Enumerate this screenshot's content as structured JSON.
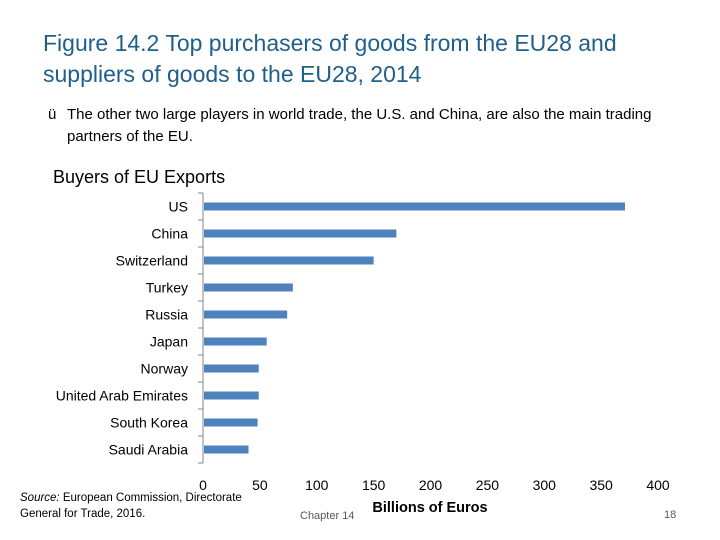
{
  "slide": {
    "title": "Figure 14.2 Top purchasers of goods from the EU28 and suppliers of goods to the EU28, 2014",
    "bullet_icon": "checkmark-icon",
    "bullet_mark": "ü",
    "bullet_text": "The other two large players in world trade, the U.S. and China, are also the main trading partners of the EU.",
    "source_label": "Source:",
    "source_text": " European Commission, Directorate General for Trade, 2016.",
    "chapter": "Chapter 14",
    "slide_number": "18"
  },
  "chart_data": {
    "type": "bar",
    "orientation": "horizontal",
    "title": "Buyers of EU Exports",
    "xlabel": "Billions of Euros",
    "ylabel": "",
    "categories": [
      "US",
      "China",
      "Switzerland",
      "Turkey",
      "Russia",
      "Japan",
      "Norway",
      "United Arab Emirates",
      "South Korea",
      "Saudi Arabia"
    ],
    "values": [
      371,
      170,
      150,
      79,
      74,
      56,
      49,
      49,
      48,
      40
    ],
    "xlim": [
      0,
      400
    ],
    "xticks": [
      0,
      50,
      100,
      150,
      200,
      250,
      300,
      350,
      400
    ],
    "tick_labels": [
      "0",
      "50",
      "100",
      "150",
      "200",
      "250",
      "300",
      "350",
      "400"
    ],
    "bar_color": "#4f81bd",
    "grid": false,
    "legend": "none"
  }
}
